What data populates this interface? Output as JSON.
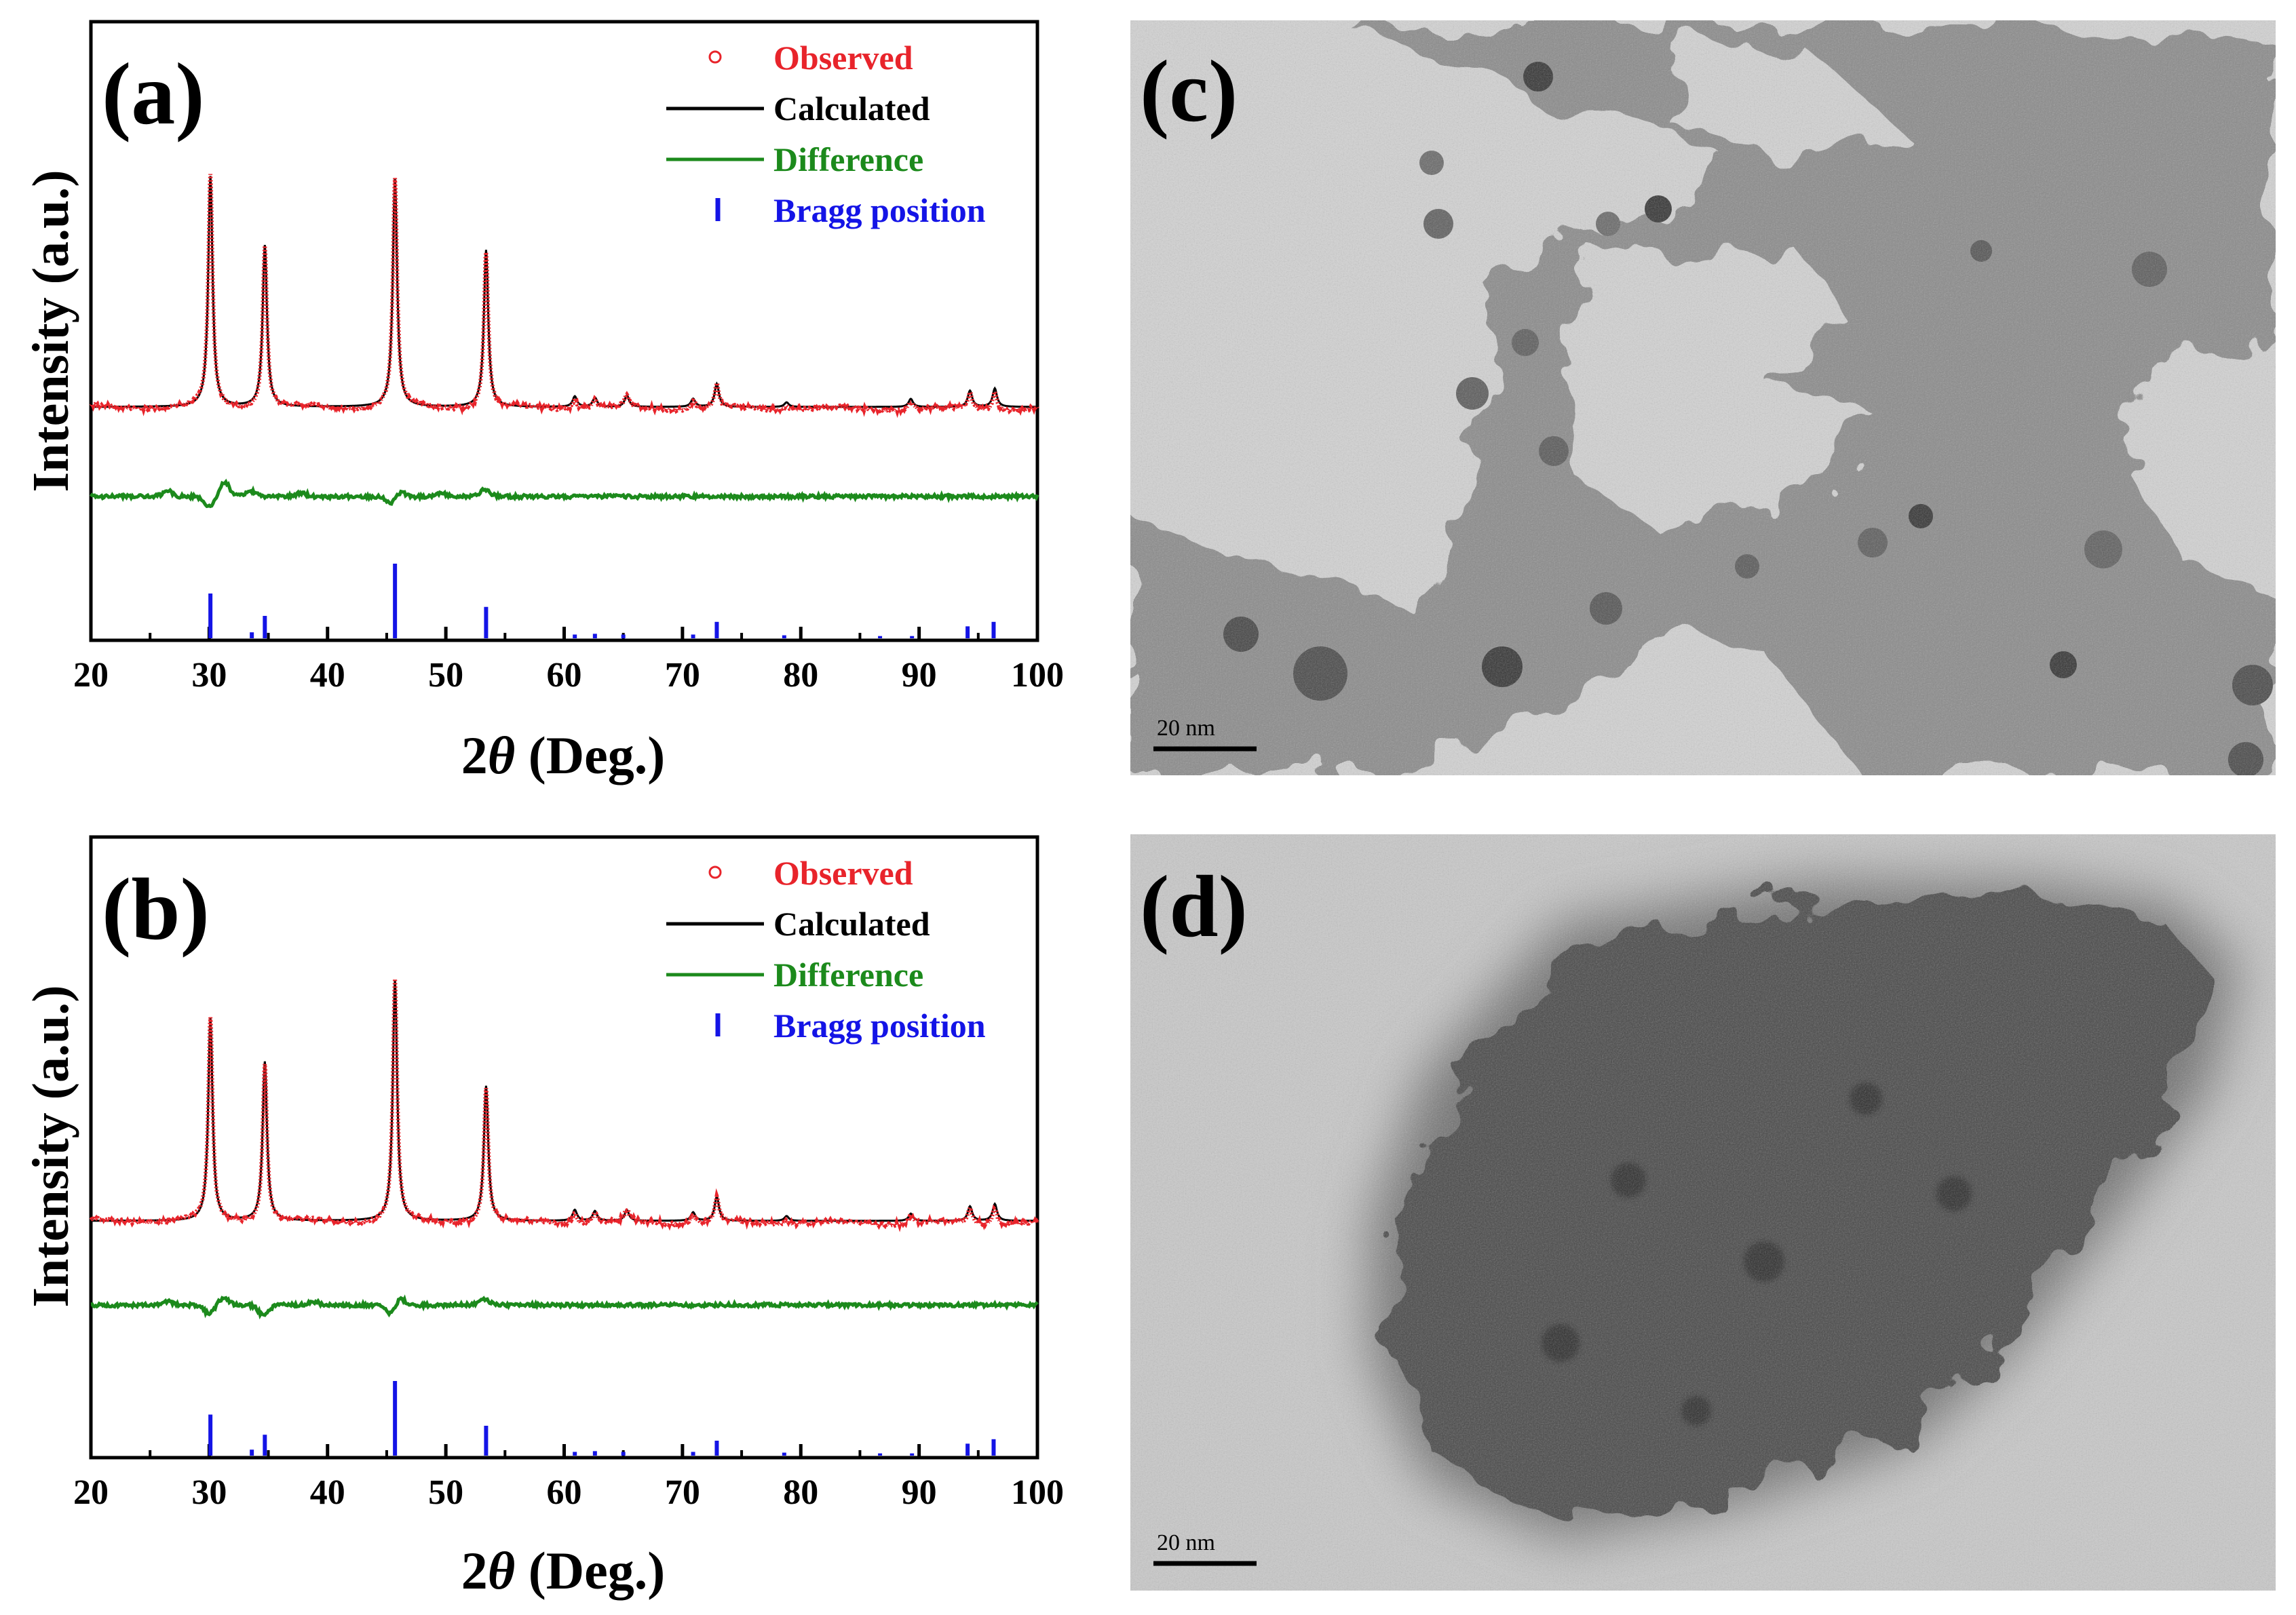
{
  "chart_data": [
    {
      "panel": "(a)",
      "type": "line",
      "xlabel": "2θ (Deg.)",
      "xlabel_prefix": "2",
      "xlabel_var": "θ",
      "xlabel_suffix": " (Deg.)",
      "ylabel": "Intensity (a.u.)",
      "xlim": [
        20,
        100
      ],
      "xticks": [
        20,
        30,
        40,
        50,
        60,
        70,
        80,
        90,
        100
      ],
      "grid": false,
      "legend_position": "top-right",
      "legend": [
        {
          "label": "Observed",
          "marker": "circle",
          "color": "#e8242b"
        },
        {
          "label": "Calculated",
          "marker": "line",
          "color": "#000000"
        },
        {
          "label": "Difference",
          "marker": "line",
          "color": "#1c8a1c"
        },
        {
          "label": "Bragg position",
          "marker": "tick",
          "color": "#1414e6"
        }
      ],
      "series": [
        {
          "name": "Observed / Calculated",
          "baseline": 0.0,
          "peaks": [
            {
              "x": 30.1,
              "y": 1.0
            },
            {
              "x": 34.7,
              "y": 0.7
            },
            {
              "x": 45.7,
              "y": 0.99
            },
            {
              "x": 53.4,
              "y": 0.68
            },
            {
              "x": 60.9,
              "y": 0.045
            },
            {
              "x": 62.6,
              "y": 0.04
            },
            {
              "x": 65.3,
              "y": 0.05
            },
            {
              "x": 70.9,
              "y": 0.035
            },
            {
              "x": 72.9,
              "y": 0.1
            },
            {
              "x": 78.8,
              "y": 0.02
            },
            {
              "x": 89.3,
              "y": 0.035
            },
            {
              "x": 94.3,
              "y": 0.07
            },
            {
              "x": 96.4,
              "y": 0.08
            }
          ]
        },
        {
          "name": "Difference",
          "features": [
            {
              "x": 26.5,
              "y": 0.03
            },
            {
              "x": 30.0,
              "y": -0.06
            },
            {
              "x": 31.3,
              "y": 0.08
            },
            {
              "x": 33.5,
              "y": 0.03
            },
            {
              "x": 37.8,
              "y": 0.02
            },
            {
              "x": 45.5,
              "y": -0.05
            },
            {
              "x": 46.0,
              "y": 0.04
            },
            {
              "x": 49.5,
              "y": 0.02
            },
            {
              "x": 53.3,
              "y": 0.04
            }
          ]
        }
      ],
      "bragg": [
        {
          "x": 30.1,
          "h": 0.6
        },
        {
          "x": 33.6,
          "h": 0.08
        },
        {
          "x": 34.7,
          "h": 0.3
        },
        {
          "x": 45.7,
          "h": 1.0
        },
        {
          "x": 53.4,
          "h": 0.42
        },
        {
          "x": 60.9,
          "h": 0.05
        },
        {
          "x": 62.6,
          "h": 0.06
        },
        {
          "x": 65.0,
          "h": 0.05
        },
        {
          "x": 70.9,
          "h": 0.05
        },
        {
          "x": 72.9,
          "h": 0.22
        },
        {
          "x": 78.6,
          "h": 0.04
        },
        {
          "x": 86.7,
          "h": 0.03
        },
        {
          "x": 89.4,
          "h": 0.03
        },
        {
          "x": 94.1,
          "h": 0.16
        },
        {
          "x": 96.3,
          "h": 0.22
        }
      ]
    },
    {
      "panel": "(b)",
      "type": "line",
      "xlabel": "2θ (Deg.)",
      "xlabel_prefix": "2",
      "xlabel_var": "θ",
      "xlabel_suffix": " (Deg.)",
      "ylabel": "Intensity (a.u.)",
      "xlim": [
        20,
        100
      ],
      "xticks": [
        20,
        30,
        40,
        50,
        60,
        70,
        80,
        90,
        100
      ],
      "grid": false,
      "legend_position": "top-right",
      "legend": [
        {
          "label": "Observed",
          "marker": "circle",
          "color": "#e8242b"
        },
        {
          "label": "Calculated",
          "marker": "line",
          "color": "#000000"
        },
        {
          "label": "Difference",
          "marker": "line",
          "color": "#1c8a1c"
        },
        {
          "label": "Bragg position",
          "marker": "tick",
          "color": "#1414e6"
        }
      ],
      "series": [
        {
          "name": "Observed / Calculated",
          "baseline": 0.0,
          "peaks": [
            {
              "x": 30.1,
              "y": 0.84
            },
            {
              "x": 34.7,
              "y": 0.66
            },
            {
              "x": 45.7,
              "y": 1.0
            },
            {
              "x": 53.4,
              "y": 0.56
            },
            {
              "x": 60.9,
              "y": 0.045
            },
            {
              "x": 62.6,
              "y": 0.04
            },
            {
              "x": 65.3,
              "y": 0.045
            },
            {
              "x": 70.9,
              "y": 0.035
            },
            {
              "x": 72.9,
              "y": 0.1
            },
            {
              "x": 78.8,
              "y": 0.02
            },
            {
              "x": 89.3,
              "y": 0.03
            },
            {
              "x": 94.3,
              "y": 0.06
            },
            {
              "x": 96.4,
              "y": 0.07
            }
          ]
        },
        {
          "name": "Difference",
          "features": [
            {
              "x": 26.5,
              "y": 0.02
            },
            {
              "x": 30.0,
              "y": -0.05
            },
            {
              "x": 31.2,
              "y": 0.04
            },
            {
              "x": 34.6,
              "y": -0.06
            },
            {
              "x": 38.8,
              "y": 0.02
            },
            {
              "x": 45.5,
              "y": -0.07
            },
            {
              "x": 46.0,
              "y": 0.06
            },
            {
              "x": 53.3,
              "y": 0.03
            }
          ]
        }
      ],
      "bragg": [
        {
          "x": 30.1,
          "h": 0.55
        },
        {
          "x": 33.6,
          "h": 0.08
        },
        {
          "x": 34.7,
          "h": 0.28
        },
        {
          "x": 45.7,
          "h": 1.0
        },
        {
          "x": 53.4,
          "h": 0.4
        },
        {
          "x": 60.9,
          "h": 0.05
        },
        {
          "x": 62.6,
          "h": 0.06
        },
        {
          "x": 65.0,
          "h": 0.05
        },
        {
          "x": 70.9,
          "h": 0.05
        },
        {
          "x": 72.9,
          "h": 0.2
        },
        {
          "x": 78.6,
          "h": 0.04
        },
        {
          "x": 86.7,
          "h": 0.03
        },
        {
          "x": 89.4,
          "h": 0.03
        },
        {
          "x": 94.1,
          "h": 0.16
        },
        {
          "x": 96.3,
          "h": 0.22
        }
      ]
    }
  ],
  "images": [
    {
      "panel": "(c)",
      "scale_bar": "20 nm",
      "background": "#d2d2d2",
      "specimen": "#8d8d8d"
    },
    {
      "panel": "(d)",
      "scale_bar": "20 nm",
      "background": "#c8c8c8",
      "specimen": "#4a4a4a"
    }
  ]
}
